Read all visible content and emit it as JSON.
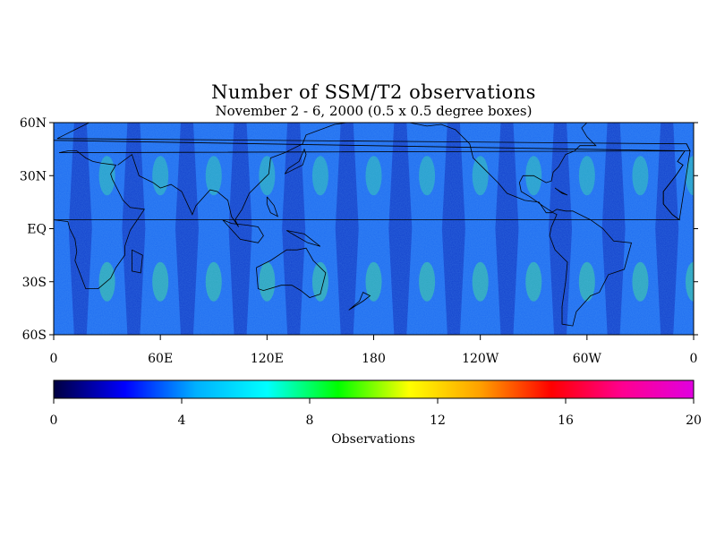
{
  "title": "Number of SSM/T2 observations",
  "subtitle": "November 2 - 6, 2000 (0.5 x 0.5 degree boxes)",
  "map": {
    "projection": "equirectangular",
    "lon_range": [
      0,
      360
    ],
    "lat_range": [
      -60,
      60
    ],
    "lat_ticks": [
      {
        "lat": 60,
        "label": "60N"
      },
      {
        "lat": 30,
        "label": "30N"
      },
      {
        "lat": 0,
        "label": "EQ"
      },
      {
        "lat": -30,
        "label": "30S"
      },
      {
        "lat": -60,
        "label": "60S"
      }
    ],
    "lon_ticks": [
      {
        "lon": 0,
        "label": "0"
      },
      {
        "lon": 60,
        "label": "60E"
      },
      {
        "lon": 120,
        "label": "120E"
      },
      {
        "lon": 180,
        "label": "180"
      },
      {
        "lon": 240,
        "label": "120W"
      },
      {
        "lon": 300,
        "label": "60W"
      },
      {
        "lon": 360,
        "label": "0"
      }
    ],
    "field": "observation count per 0.5 x 0.5 degree box",
    "swath_count": 12,
    "coastlines": true
  },
  "colorbar": {
    "label": "Observations",
    "min": 0,
    "max": 20,
    "ticks": [
      0,
      4,
      8,
      12,
      16,
      20
    ],
    "stops": [
      "#000040",
      "#0000ff",
      "#00b0ff",
      "#00ffff",
      "#00ff00",
      "#ffff00",
      "#ffa000",
      "#ff0000",
      "#ff0090",
      "#e000e0"
    ]
  }
}
